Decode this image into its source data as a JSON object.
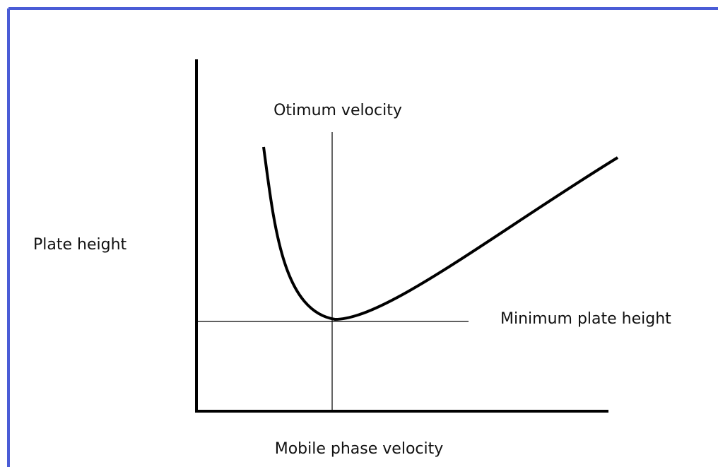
{
  "labels": {
    "optimum": "Otimum velocity",
    "y_axis": "Plate height",
    "minimum": "Minimum plate height",
    "x_axis": "Mobile phase velocity"
  }
}
